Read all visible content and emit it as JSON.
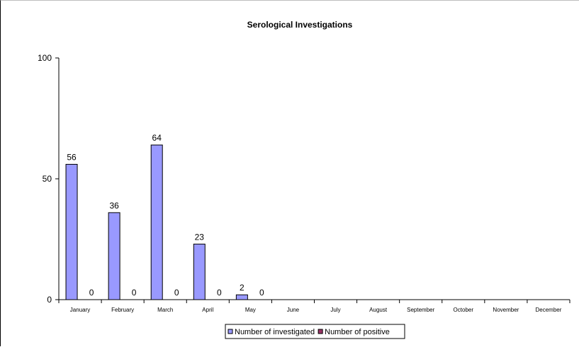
{
  "chart_data": {
    "type": "bar",
    "title": "Serological Investigations",
    "categories": [
      "January",
      "February",
      "March",
      "April",
      "May",
      "June",
      "July",
      "August",
      "September",
      "October",
      "November",
      "December"
    ],
    "series": [
      {
        "name": "Number of investigated",
        "values": [
          56,
          36,
          64,
          23,
          2,
          null,
          null,
          null,
          null,
          null,
          null,
          null
        ],
        "color": "#9999ff"
      },
      {
        "name": "Number of positive",
        "values": [
          0,
          0,
          0,
          0,
          0,
          null,
          null,
          null,
          null,
          null,
          null,
          null
        ],
        "color": "#993366"
      }
    ],
    "ylim": [
      0,
      100
    ],
    "yticks": [
      0,
      50,
      100
    ],
    "grid": false,
    "legend_position": "bottom"
  }
}
